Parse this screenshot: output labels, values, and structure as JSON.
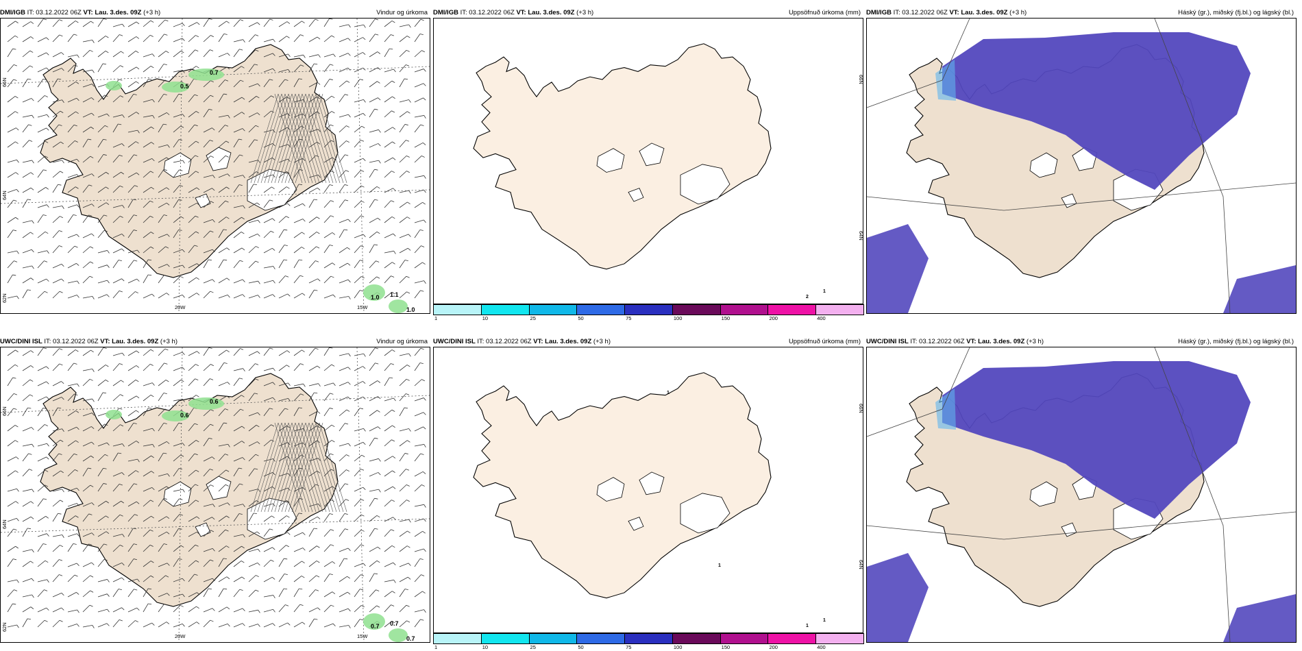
{
  "panels": [
    {
      "model": "DMI/IGB",
      "init": "IT: 03.12.2022 06Z",
      "valid": "VT: Lau. 3.des. 09Z",
      "lead": "(+3 h)",
      "title": "Vindur og úrkoma",
      "type": "wind",
      "lat_labels": [
        "66N",
        "64N",
        "62N"
      ],
      "lon_labels": [
        "20W",
        "15W"
      ],
      "values": [
        "0.7",
        "0.5",
        "1.1",
        "1.0",
        "1.0"
      ]
    },
    {
      "model": "DMI/IGB",
      "init": "IT: 03.12.2022 06Z",
      "valid": "VT: Lau. 3.des. 09Z",
      "lead": "(+3 h)",
      "title": "Uppsöfnuð úrkoma (mm)",
      "type": "precip",
      "lat_labels": [
        "66N",
        "64N"
      ],
      "values": [
        "1",
        "2"
      ]
    },
    {
      "model": "DMI/IGB",
      "init": "IT: 03.12.2022 06Z",
      "valid": "VT: Lau. 3.des. 09Z",
      "lead": "(+3 h)",
      "title": "Háský (gr.), miðský (fj.bl.) og lágský (bl.)",
      "type": "cloud"
    },
    {
      "model": "UWC/DINI ISL",
      "init": "IT: 03.12.2022 06Z",
      "valid": "VT: Lau. 3.des. 09Z",
      "lead": "(+3 h)",
      "title": "Vindur og úrkoma",
      "type": "wind",
      "lat_labels": [
        "66N",
        "64N",
        "62N"
      ],
      "lon_labels": [
        "20W",
        "15W"
      ],
      "values": [
        "0.6",
        "0.6",
        "0.7",
        "0.7",
        "0.7"
      ]
    },
    {
      "model": "UWC/DINI ISL",
      "init": "IT: 03.12.2022 06Z",
      "valid": "VT: Lau. 3.des. 09Z",
      "lead": "(+3 h)",
      "title": "Uppsöfnuð úrkoma (mm)",
      "type": "precip",
      "lat_labels": [
        "66N",
        "64N"
      ],
      "values": [
        "1",
        "1",
        "1",
        "1"
      ]
    },
    {
      "model": "UWC/DINI ISL",
      "init": "IT: 03.12.2022 06Z",
      "valid": "VT: Lau. 3.des. 09Z",
      "lead": "(+3 h)",
      "title": "Háský (gr.), miðský (fj.bl.) og lágský (bl.)",
      "type": "cloud"
    }
  ],
  "colorbar": {
    "labels": [
      "1",
      "10",
      "25",
      "50",
      "75",
      "100",
      "150",
      "200",
      "400"
    ],
    "colors": [
      "#b8f4f8",
      "#12e6ef",
      "#10b8e8",
      "#2e6ae6",
      "#2a2fbf",
      "#6a0a5a",
      "#b0108e",
      "#ee12a6",
      "#f3b0ef"
    ]
  },
  "colors": {
    "land": "#eee0cf",
    "land_precip": "#fbefe2",
    "high_cloud": "#5348be",
    "low_cloud": "#5fb4ee",
    "precip_green": "#8fe08f"
  }
}
